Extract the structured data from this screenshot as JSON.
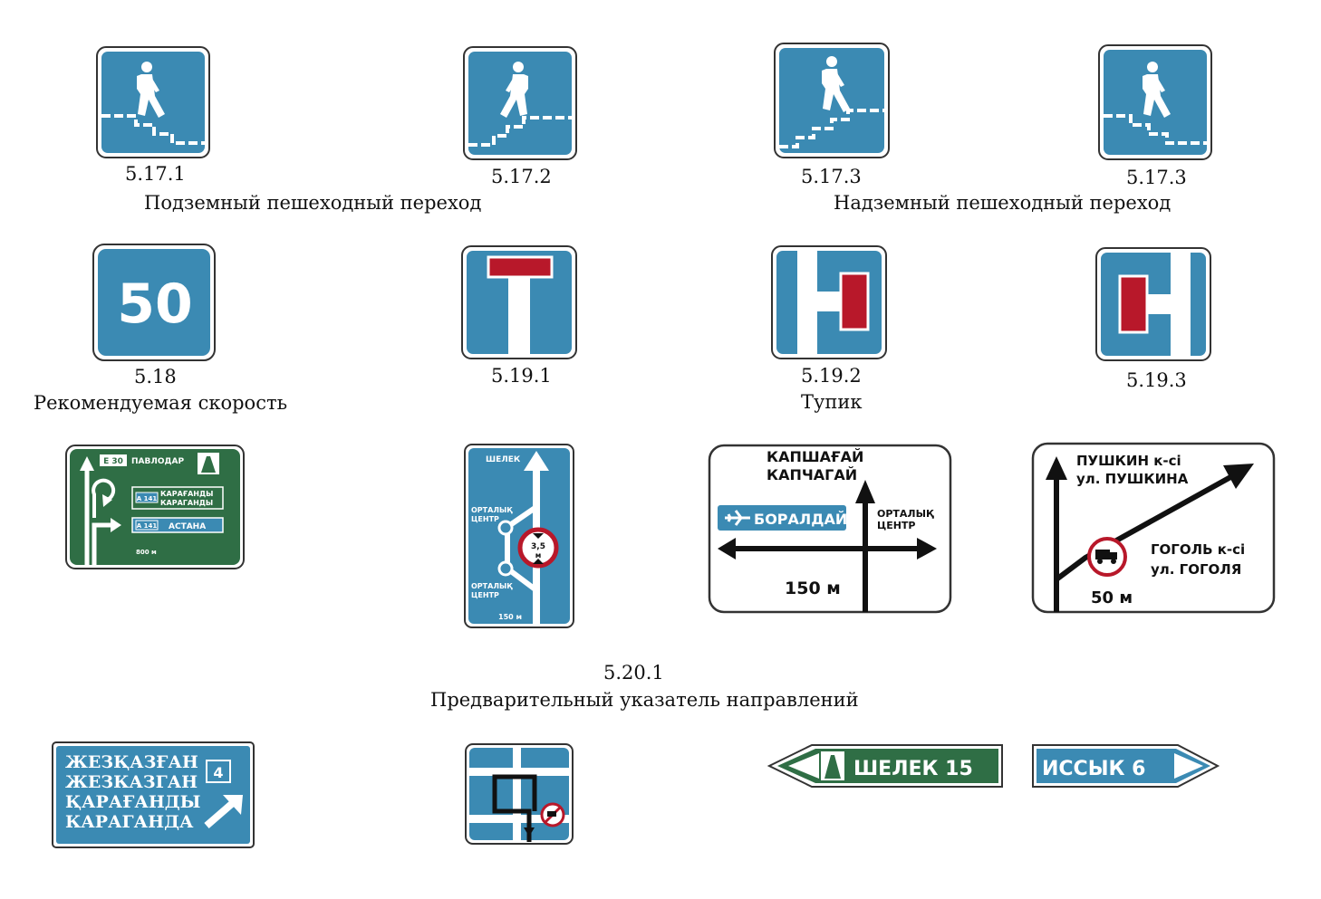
{
  "colors": {
    "sign_blue": "#3b8ab3",
    "sign_green": "#2f6e45",
    "sign_red": "#b8182a",
    "white": "#ffffff",
    "black": "#111111"
  },
  "captions": {
    "c5171": "5.17.1",
    "c5172": "5.17.2",
    "c5173a": "5.17.3",
    "c5173b": "5.17.3",
    "underground": "Подземный пешеходный переход",
    "overground": "Надземный пешеходный переход",
    "c518": "5.18",
    "recommended": "Рекомендуемая скорость",
    "c5191": "5.19.1",
    "c5192": "5.19.2",
    "deadend": "Тупик",
    "c5193": "5.19.3",
    "c5201": "5.20.1",
    "advance": "Предварительный указатель направлений"
  },
  "signs": {
    "speed": "50",
    "green_panel": {
      "route": "E 30",
      "city": "ПАВЛОДАР",
      "route2": "А 141",
      "city2a": "КАРАҒАНДЫ",
      "city2b": "КАРАГАНДЫ",
      "route3": "А 141",
      "city3": "АСТАНА",
      "dist": "800 м"
    },
    "vertical": {
      "top": "ШЕЛЕК",
      "mid1a": "ОРТАЛЫҚ",
      "mid1b": "ЦЕНТР",
      "limit_a": "3,5",
      "limit_b": "м",
      "mid2a": "ОРТАЛЫҚ",
      "mid2b": "ЦЕНТР",
      "dist": "150 м"
    },
    "kapchagai": {
      "l1": "КАПШАҒАЙ",
      "l2": "КАПЧАГАЙ",
      "airport": "БОРАЛДАЙ",
      "r1": "ОРТАЛЫҚ",
      "r2": "ЦЕНТР",
      "dist": "150 м"
    },
    "pushkin": {
      "l1": "ПУШКИН к-сі",
      "l2": "ул. ПУШКИНА",
      "r1": "ГОГОЛЬ к-сі",
      "r2": "ул. ГОГОЛЯ",
      "dist": "50 м"
    },
    "zhez": {
      "l1": "ЖЕЗҚАЗҒАН",
      "l2": "ЖЕЗКАЗГАН",
      "l3": "ҚАРАҒАНДЫ",
      "l4": "КАРАГАНДА",
      "num": "4"
    },
    "shelek15": "ШЕЛЕК 15",
    "issyk6": "ИССЫК 6"
  }
}
